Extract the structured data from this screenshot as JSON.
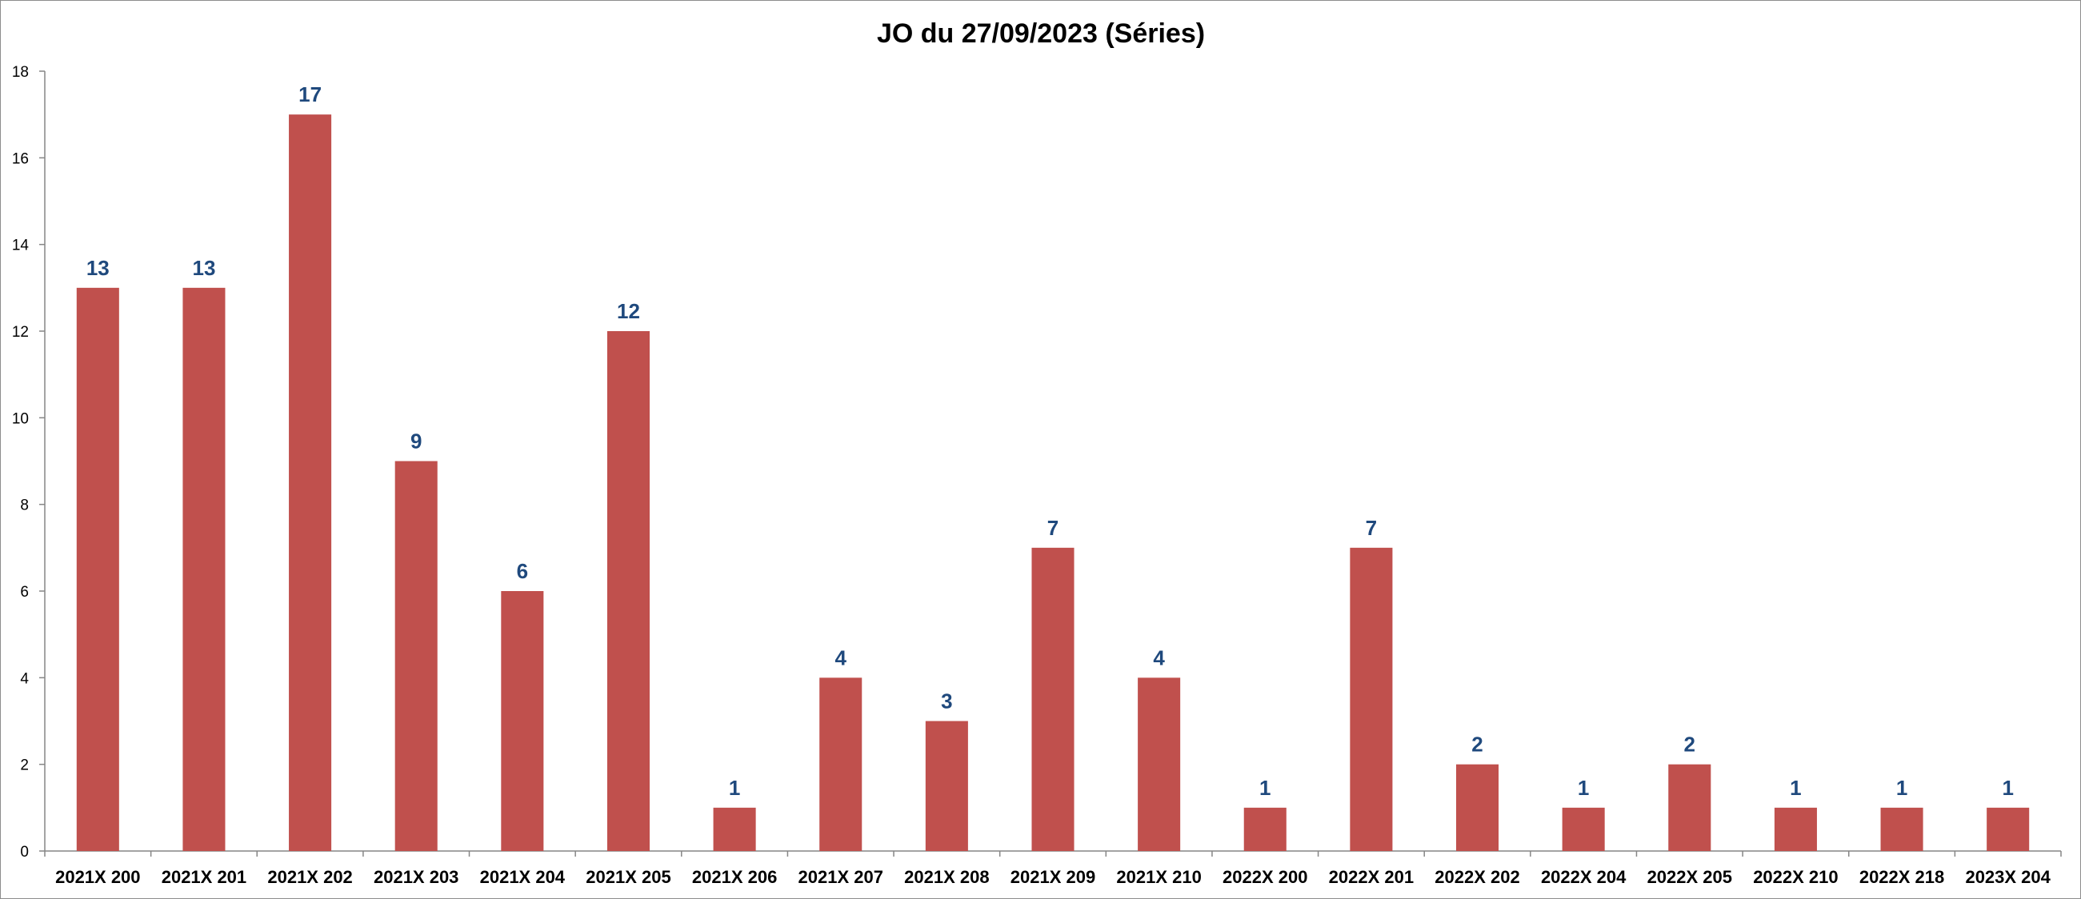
{
  "chart_data": {
    "type": "bar",
    "title": "JO du 27/09/2023 (Séries)",
    "xlabel": "",
    "ylabel": "",
    "ylim": [
      0,
      18
    ],
    "yticks": [
      "0",
      "2",
      "4",
      "6",
      "8",
      "10",
      "12",
      "14",
      "16",
      "18"
    ],
    "categories": [
      "2021X 200",
      "2021X 201",
      "2021X 202",
      "2021X 203",
      "2021X 204",
      "2021X 205",
      "2021X 206",
      "2021X 207",
      "2021X 208",
      "2021X 209",
      "2021X 210",
      "2022X 200",
      "2022X 201",
      "2022X 202",
      "2022X 204",
      "2022X 205",
      "2022X 210",
      "2022X 218",
      "2023X 204"
    ],
    "values": [
      13,
      13,
      17,
      9,
      6,
      12,
      1,
      4,
      3,
      7,
      4,
      1,
      7,
      2,
      1,
      2,
      1,
      1,
      1
    ],
    "data_labels": true,
    "grid": false,
    "legend": "none",
    "colors": {
      "bar": "#c0504d",
      "data_label": "#1f497d",
      "axis": "#868686"
    }
  }
}
